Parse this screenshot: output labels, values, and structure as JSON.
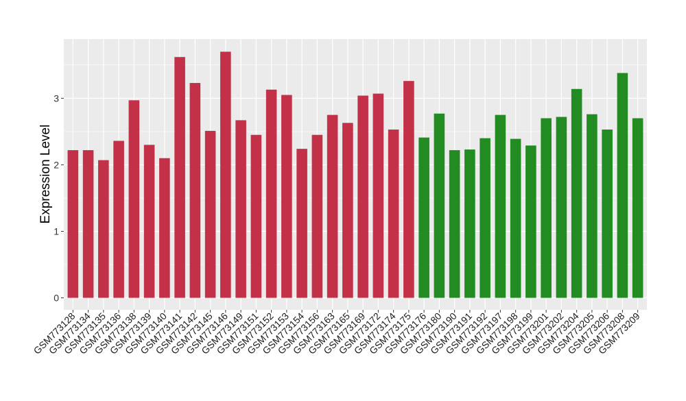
{
  "chart_data": {
    "type": "bar",
    "title": "",
    "xlabel": "",
    "ylabel": "Expression Level",
    "ylim": [
      -0.18,
      3.89
    ],
    "yticks": [
      0,
      1,
      2,
      3
    ],
    "grid": true,
    "legend": "none",
    "colors": {
      "group1": "#C33149",
      "group2": "#228B22",
      "panel": "#EBEBEB",
      "grid": "#FFFFFF"
    },
    "categories": [
      "GSM773128",
      "GSM773134",
      "GSM773135",
      "GSM773136",
      "GSM773138",
      "GSM773139",
      "GSM773140",
      "GSM773141",
      "GSM773142",
      "GSM773145",
      "GSM773146",
      "GSM773149",
      "GSM773151",
      "GSM773152",
      "GSM773153",
      "GSM773154",
      "GSM773156",
      "GSM773163",
      "GSM773165",
      "GSM773169",
      "GSM773172",
      "GSM773174",
      "GSM773175",
      "GSM773176",
      "GSM773180",
      "GSM773190",
      "GSM773191",
      "GSM773192",
      "GSM773197",
      "GSM773198",
      "GSM773199",
      "GSM773201",
      "GSM773202",
      "GSM773204",
      "GSM773205",
      "GSM773206",
      "GSM773208",
      "GSM773209"
    ],
    "values": [
      2.22,
      2.22,
      2.07,
      2.36,
      2.97,
      2.3,
      2.1,
      3.62,
      3.23,
      2.51,
      3.7,
      2.67,
      2.45,
      3.13,
      3.05,
      2.24,
      2.45,
      2.75,
      2.63,
      3.04,
      3.07,
      2.53,
      3.26,
      2.41,
      2.77,
      2.22,
      2.23,
      2.4,
      2.75,
      2.39,
      2.29,
      2.7,
      2.72,
      3.14,
      2.76,
      2.53,
      3.38,
      2.7
    ],
    "groups": [
      "group1",
      "group1",
      "group1",
      "group1",
      "group1",
      "group1",
      "group1",
      "group1",
      "group1",
      "group1",
      "group1",
      "group1",
      "group1",
      "group1",
      "group1",
      "group1",
      "group1",
      "group1",
      "group1",
      "group1",
      "group1",
      "group1",
      "group1",
      "group2",
      "group2",
      "group2",
      "group2",
      "group2",
      "group2",
      "group2",
      "group2",
      "group2",
      "group2",
      "group2",
      "group2",
      "group2",
      "group2",
      "group2"
    ]
  }
}
